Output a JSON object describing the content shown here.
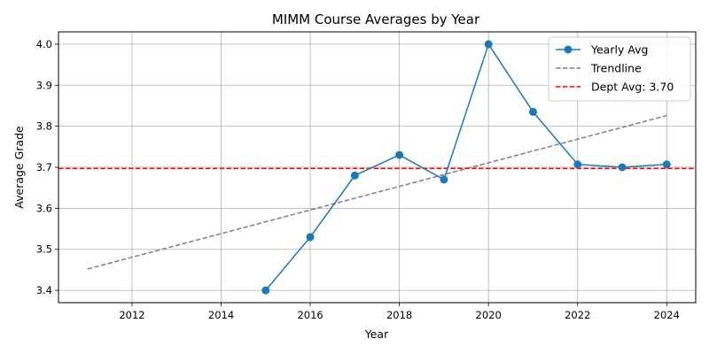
{
  "chart_data": {
    "type": "line",
    "title": "MIMM Course Averages by Year",
    "xlabel": "Year",
    "ylabel": "Average Grade",
    "xlim": [
      2010.35,
      2024.65
    ],
    "ylim": [
      3.37,
      4.03
    ],
    "xticks": [
      2012,
      2014,
      2016,
      2018,
      2020,
      2022,
      2024
    ],
    "yticks": [
      3.4,
      3.5,
      3.6,
      3.7,
      3.8,
      3.9,
      4.0
    ],
    "xtick_labels": [
      "2012",
      "2014",
      "2016",
      "2018",
      "2020",
      "2022",
      "2024"
    ],
    "ytick_labels": [
      "3.4",
      "3.5",
      "3.6",
      "3.7",
      "3.8",
      "3.9",
      "4.0"
    ],
    "grid": true,
    "legend_position": "top-right",
    "series": [
      {
        "name": "Yearly Avg",
        "color": "#1f77b4",
        "style": "solid-marker",
        "x": [
          2015,
          2016,
          2017,
          2018,
          2019,
          2020,
          2021,
          2022,
          2023,
          2024
        ],
        "y": [
          3.4,
          3.53,
          3.68,
          3.73,
          3.67,
          4.0,
          3.835,
          3.707,
          3.7,
          3.707
        ]
      },
      {
        "name": "Trendline",
        "color": "#808080",
        "style": "dashed",
        "x": [
          2011,
          2024
        ],
        "y": [
          3.452,
          3.826
        ]
      },
      {
        "name": "Dept Avg: 3.70",
        "color": "#ff0000",
        "style": "dashed-horizontal",
        "y": 3.697
      }
    ]
  }
}
